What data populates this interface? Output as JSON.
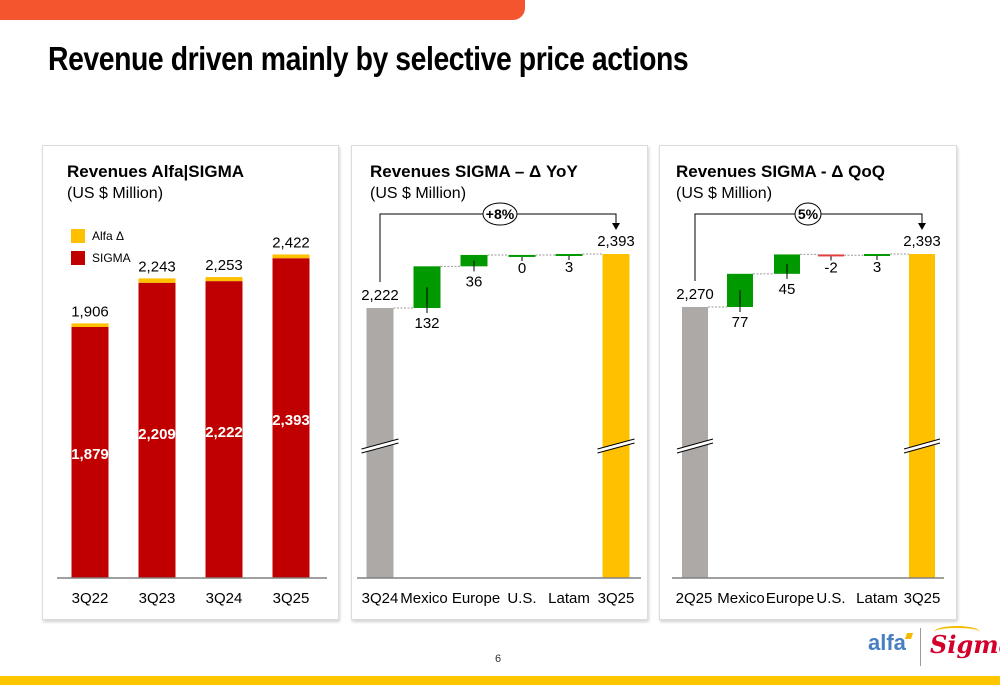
{
  "page": {
    "title": "Revenue driven mainly by selective price actions",
    "page_number": "6",
    "logos": {
      "left": "alfa",
      "right": "Sigma"
    },
    "colors": {
      "top_bar": "#F4552F",
      "bottom_band": "#FFC600",
      "sigma_red": "#C00000",
      "alfa_yellow": "#FFC000",
      "increase_green": "#009900",
      "decrease_red": "#E04040",
      "start_gray": "#ADA9A7",
      "end_yellow": "#FFC000"
    }
  },
  "chart_data": [
    {
      "type": "bar",
      "stacked": true,
      "title": "Revenues Alfa|SIGMA",
      "subtitle": "(US $ Million)",
      "legend": {
        "placement": "top-left",
        "entries": [
          {
            "name": "Alfa Δ",
            "color": "#FFC000"
          },
          {
            "name": "SIGMA",
            "color": "#C00000"
          }
        ]
      },
      "categories": [
        "3Q22",
        "3Q23",
        "3Q24",
        "3Q25"
      ],
      "series": [
        {
          "name": "SIGMA",
          "values": [
            1879,
            2209,
            2222,
            2393
          ],
          "labels": [
            "1,879",
            "2,209",
            "2,222",
            "2,393"
          ]
        },
        {
          "name": "Alfa Δ",
          "values": [
            27,
            34,
            31,
            29
          ]
        }
      ],
      "totals": [
        1906,
        2243,
        2253,
        2422
      ],
      "total_labels": [
        "1,906",
        "2,243",
        "2,253",
        "2,422"
      ],
      "ylim": [
        0,
        2600
      ],
      "grid": false
    },
    {
      "type": "waterfall",
      "title": "Revenues SIGMA – Δ YoY",
      "subtitle": "(US $ Million)",
      "categories": [
        "3Q24",
        "Mexico",
        "Europe",
        "U.S.",
        "Latam",
        "3Q25"
      ],
      "start": {
        "label": "3Q24",
        "value": 2222,
        "text": "2,222"
      },
      "steps": [
        {
          "label": "Mexico",
          "value": 132,
          "text": "132"
        },
        {
          "label": "Europe",
          "value": 36,
          "text": "36"
        },
        {
          "label": "U.S.",
          "value": 0,
          "text": "0"
        },
        {
          "label": "Latam",
          "value": 3,
          "text": "3"
        }
      ],
      "end": {
        "label": "3Q25",
        "value": 2393,
        "text": "2,393"
      },
      "change_annotation": "+8%",
      "axis_break": true,
      "ylim": [
        2100,
        2420
      ]
    },
    {
      "type": "waterfall",
      "title": "Revenues SIGMA - Δ QoQ",
      "subtitle": "(US $ Million)",
      "categories": [
        "2Q25",
        "Mexico",
        "Europe",
        "U.S.",
        "Latam",
        "3Q25"
      ],
      "start": {
        "label": "2Q25",
        "value": 2270,
        "text": "2,270"
      },
      "steps": [
        {
          "label": "Mexico",
          "value": 77,
          "text": "77"
        },
        {
          "label": "Europe",
          "value": 45,
          "text": "45"
        },
        {
          "label": "U.S.",
          "value": -2,
          "text": "-2"
        },
        {
          "label": "Latam",
          "value": 3,
          "text": "3"
        }
      ],
      "end": {
        "label": "3Q25",
        "value": 2393,
        "text": "2,393"
      },
      "change_annotation": "5%",
      "axis_break": true,
      "ylim": [
        2148,
        2420
      ]
    }
  ]
}
